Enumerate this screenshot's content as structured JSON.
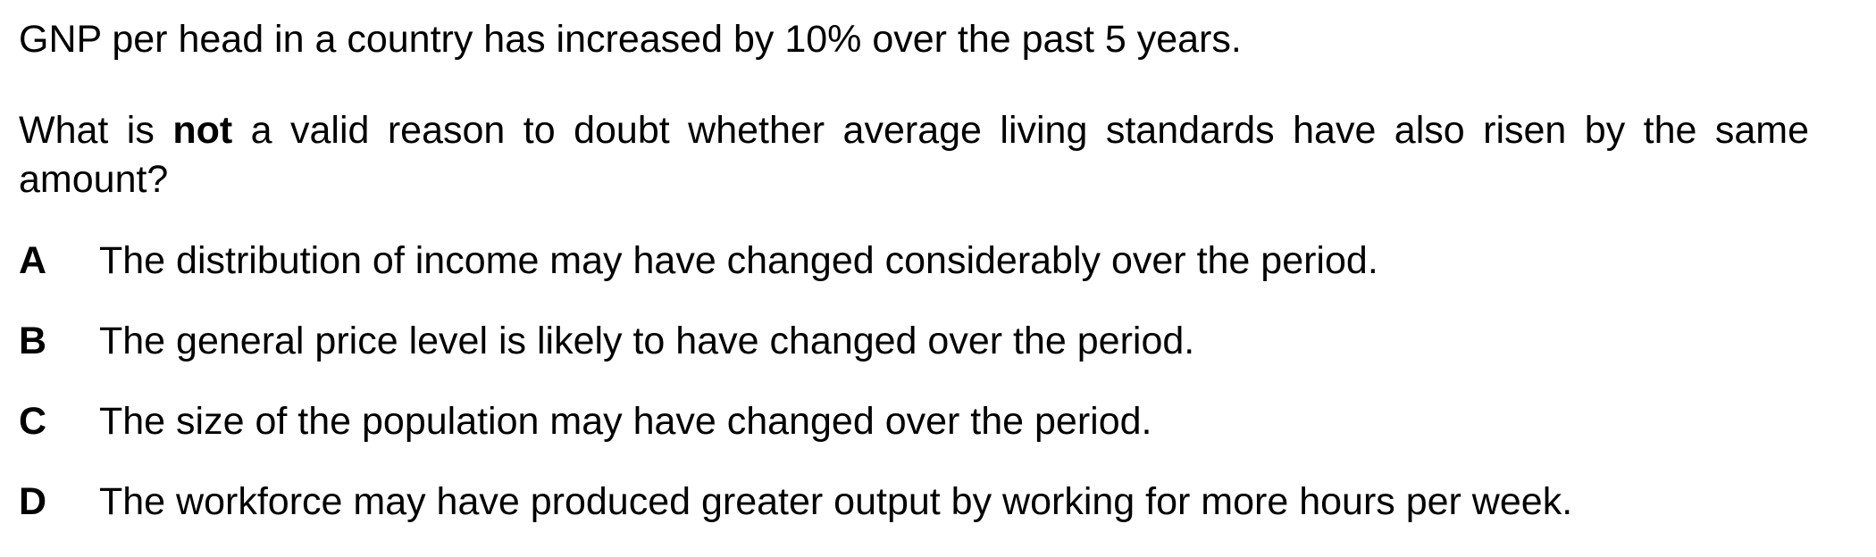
{
  "question": {
    "stem": "GNP per head in a country has increased by 10% over the past 5 years.",
    "prompt_before": "What is ",
    "prompt_emphasis": "not",
    "prompt_after": " a valid reason to doubt whether average living standards have also risen by the same amount?",
    "options": [
      {
        "letter": "A",
        "text": "The distribution of income may have changed considerably over the period."
      },
      {
        "letter": "B",
        "text": "The general price level is likely to have changed over the period."
      },
      {
        "letter": "C",
        "text": "The size of the population may have changed over the period."
      },
      {
        "letter": "D",
        "text": "The workforce may have produced greater output by working for more hours per week."
      }
    ]
  }
}
